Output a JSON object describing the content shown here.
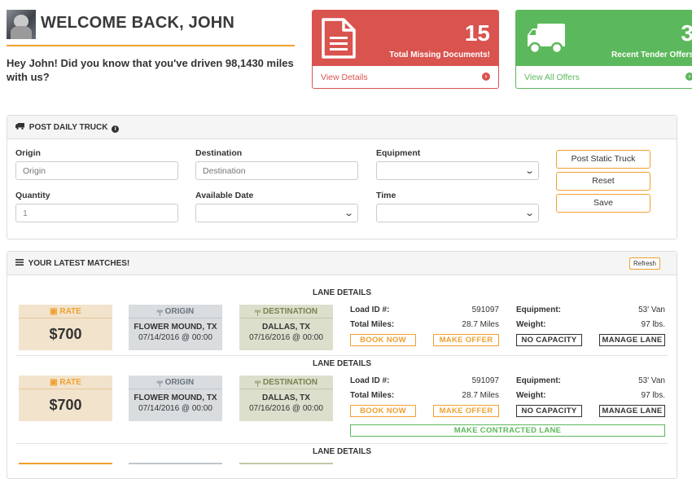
{
  "header": {
    "welcome": "WELCOME BACK, JOHN",
    "intro": "Hey John! Did you know that you've driven 98,1430 miles with us?"
  },
  "cards": [
    {
      "number": "15",
      "label": "Total Missing Documents!",
      "link": "View Details",
      "icon": "document-icon",
      "color": "#d9534f"
    },
    {
      "number": "3",
      "label": "Recent Tender Offers",
      "link": "View All Offers",
      "icon": "truck-icon",
      "color": "#5cb85c"
    }
  ],
  "post_truck": {
    "title": "POST DAILY TRUCK",
    "fields": {
      "origin": {
        "label": "Origin",
        "placeholder": "Origin"
      },
      "destination": {
        "label": "Destination",
        "placeholder": "Destination"
      },
      "equipment": {
        "label": "Equipment",
        "value": ""
      },
      "quantity": {
        "label": "Quantity",
        "value": "1"
      },
      "available_date": {
        "label": "Available Date",
        "value": ""
      },
      "time": {
        "label": "Time",
        "value": ""
      }
    },
    "buttons": {
      "post_static": "Post Static Truck",
      "reset": "Reset",
      "save": "Save"
    }
  },
  "matches": {
    "title": "YOUR LATEST MATCHES!",
    "refresh": "Refresh",
    "lane_title": "LANE DETAILS",
    "labels": {
      "rate": "RATE",
      "origin": "ORIGIN",
      "destination": "DESTINATION",
      "load_id": "Load ID #:",
      "total_miles": "Total Miles:",
      "equipment": "Equipment:",
      "weight": "Weight:",
      "book_now": "BOOK NOW",
      "make_offer": "MAKE OFFER",
      "no_capacity": "NO CAPACITY",
      "manage_lane": "MANAGE LANE",
      "make_contracted": "MAKE CONTRACTED LANE"
    },
    "lanes": [
      {
        "rate": "$700",
        "origin": "FLOWER MOUND, TX",
        "origin_date": "07/14/2016 @ 00:00",
        "destination": "DALLAS, TX",
        "destination_date": "07/16/2016 @ 00:00",
        "load_id": "591097",
        "total_miles": "28.7 Miles",
        "equipment": "53' Van",
        "weight": "97 lbs."
      },
      {
        "rate": "$700",
        "origin": "FLOWER MOUND, TX",
        "origin_date": "07/14/2016 @ 00:00",
        "destination": "DALLAS, TX",
        "destination_date": "07/16/2016 @ 00:00",
        "load_id": "591097",
        "total_miles": "28.7 Miles",
        "equipment": "53' Van",
        "weight": "97 lbs."
      }
    ]
  }
}
